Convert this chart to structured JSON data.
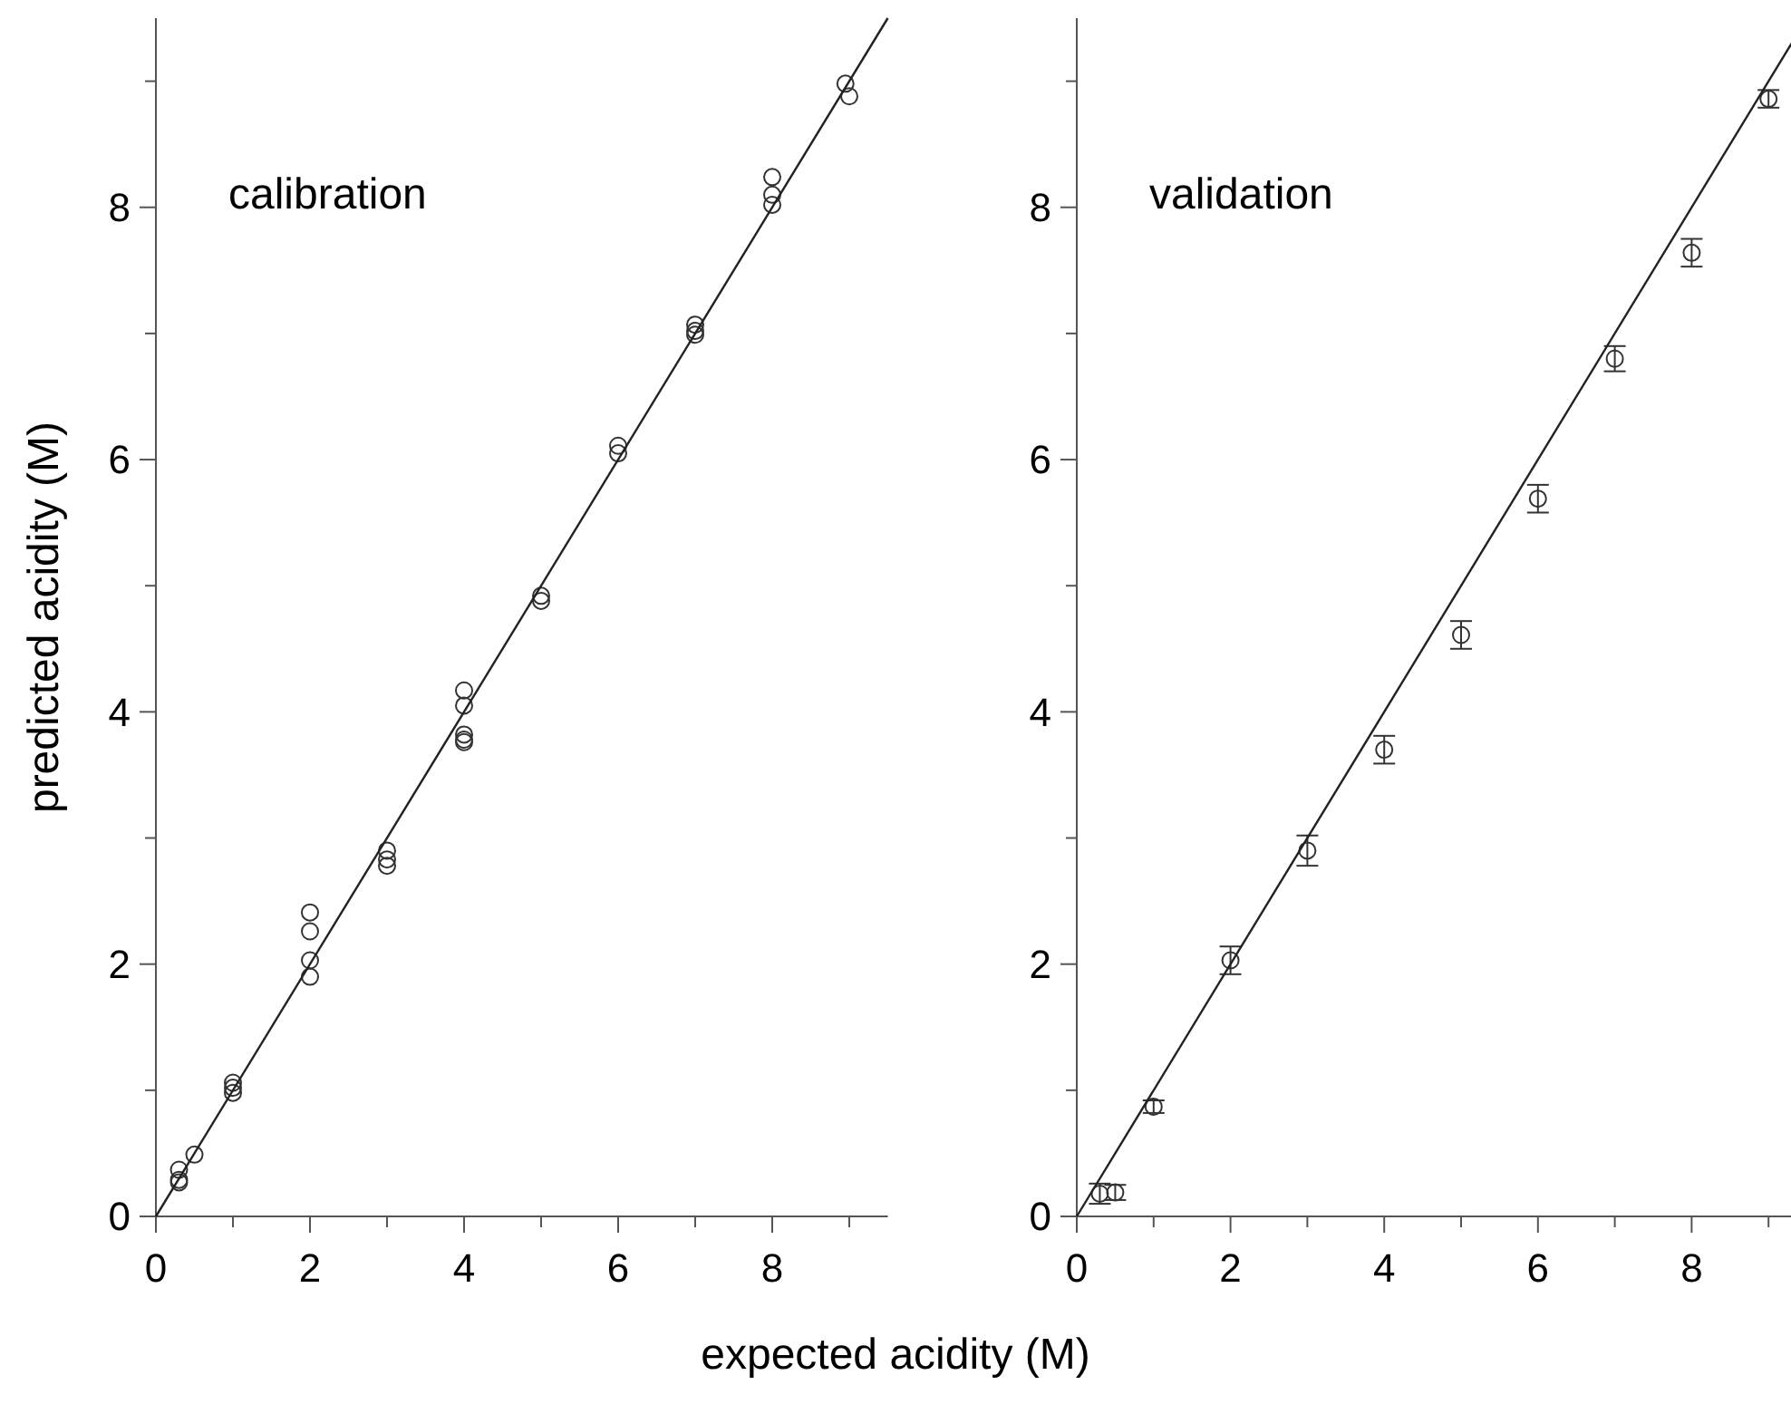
{
  "chart_data": [
    {
      "type": "scatter",
      "xlabel": "expected acidity (M)",
      "ylabel": "predicted acidity (M)",
      "annotations": [
        "calibration"
      ],
      "marker": "circle",
      "xlim": [
        0,
        9.5
      ],
      "ylim": [
        0,
        9.5
      ],
      "xticks": [
        0,
        {
          "value": 1,
          "label": null
        },
        2,
        {
          "value": 3,
          "label": null
        },
        4,
        {
          "value": 5,
          "label": null
        },
        6,
        {
          "value": 7,
          "label": null
        },
        8,
        {
          "value": 9,
          "label": null
        }
      ],
      "yticks": [
        0,
        {
          "value": 1,
          "label": null
        },
        2,
        {
          "value": 3,
          "label": null
        },
        4,
        {
          "value": 5,
          "label": null
        },
        6,
        {
          "value": 7,
          "label": null
        },
        8,
        {
          "value": 9,
          "label": null
        }
      ],
      "series": [
        {
          "color": "#333333",
          "x": [
            0.3,
            0.3,
            0.3,
            0.5,
            1,
            1,
            1,
            2,
            2,
            2,
            2,
            3,
            3,
            3,
            4,
            4,
            4,
            4,
            4,
            5,
            5,
            6,
            6,
            7,
            7,
            7,
            8,
            8,
            8,
            8.95,
            9
          ],
          "values": [
            0.37,
            0.29,
            0.27,
            0.49,
            1.06,
            1.02,
            0.98,
            2.41,
            2.26,
            2.03,
            1.9,
            2.9,
            2.83,
            2.78,
            4.17,
            4.05,
            3.82,
            3.78,
            3.76,
            4.92,
            4.88,
            6.11,
            6.05,
            7.07,
            7.02,
            6.99,
            8.24,
            8.1,
            8.02,
            8.98,
            8.88
          ]
        },
        {
          "type": "line",
          "color": "#222222",
          "marker": "none",
          "x": [
            0,
            9.5
          ],
          "values": [
            0,
            9.5
          ]
        }
      ]
    },
    {
      "type": "scatter",
      "annotations": [
        "validation"
      ],
      "marker": "circle",
      "xlim": [
        0,
        9.3
      ],
      "ylim": [
        0,
        9.5
      ],
      "xticks": [
        0,
        {
          "value": 1,
          "label": null
        },
        2,
        {
          "value": 3,
          "label": null
        },
        4,
        {
          "value": 5,
          "label": null
        },
        6,
        {
          "value": 7,
          "label": null
        },
        8,
        {
          "value": 9,
          "label": null
        }
      ],
      "yticks": [
        0,
        {
          "value": 1,
          "label": null
        },
        2,
        {
          "value": 3,
          "label": null
        },
        4,
        {
          "value": 5,
          "label": null
        },
        6,
        {
          "value": 7,
          "label": null
        },
        8,
        {
          "value": 9,
          "label": null
        }
      ],
      "series": [
        {
          "color": "#333333",
          "x": [
            0.3,
            0.5,
            1,
            2,
            3,
            4,
            5,
            6,
            7,
            8,
            9
          ],
          "values": [
            0.18,
            0.19,
            0.87,
            2.03,
            2.9,
            3.7,
            4.61,
            5.69,
            6.8,
            7.64,
            8.86
          ],
          "errors": [
            0.08,
            0.06,
            0.05,
            0.11,
            0.12,
            0.11,
            0.11,
            0.11,
            0.1,
            0.11,
            0.07
          ]
        },
        {
          "type": "line",
          "color": "#222222",
          "marker": "none",
          "x": [
            0,
            9.3
          ],
          "values": [
            0,
            9.3
          ]
        }
      ]
    }
  ]
}
